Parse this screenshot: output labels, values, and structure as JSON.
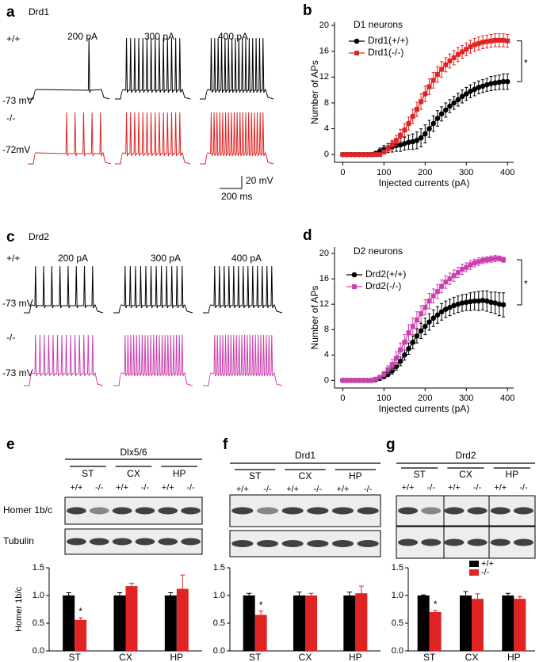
{
  "chart_data": [
    {
      "type": "line",
      "panel": "b",
      "title": "D1 neurons",
      "xlabel": "Injected currents (pA)",
      "ylabel": "Number of APs",
      "xlim": [
        -20,
        415
      ],
      "ylim": [
        -1.2,
        20.5
      ],
      "xticks": [
        0,
        100,
        200,
        300,
        400
      ],
      "yticks": [
        0,
        4,
        8,
        12,
        16,
        20
      ],
      "x": [
        0,
        10,
        20,
        30,
        40,
        50,
        60,
        70,
        80,
        90,
        100,
        110,
        120,
        130,
        140,
        150,
        160,
        170,
        180,
        190,
        200,
        210,
        220,
        230,
        240,
        250,
        260,
        270,
        280,
        290,
        300,
        310,
        320,
        330,
        340,
        350,
        360,
        370,
        380,
        390,
        400
      ],
      "series": [
        {
          "name": "Drd1(+/+)",
          "color": "#000000",
          "marker": "circle",
          "values": [
            0,
            0,
            0,
            0,
            0,
            0,
            0,
            0,
            0.2,
            0.5,
            0.8,
            1,
            1.2,
            1.4,
            1.5,
            1.7,
            1.9,
            2,
            2.2,
            2.6,
            3.2,
            4,
            4.8,
            5.6,
            6.3,
            6.9,
            7.5,
            8,
            8.5,
            9,
            9.4,
            9.8,
            10.1,
            10.4,
            10.6,
            10.8,
            11,
            11.1,
            11.2,
            11.3,
            11.3
          ],
          "errors": [
            0,
            0,
            0,
            0,
            0,
            0,
            0,
            0,
            0.3,
            0.5,
            0.6,
            0.7,
            0.8,
            0.9,
            1,
            1,
            1.1,
            1.2,
            1.3,
            1.4,
            1.4,
            1.3,
            1.2,
            1.2,
            1.1,
            1.1,
            1,
            1,
            1,
            1,
            1,
            1,
            1,
            1,
            1,
            1,
            1.1,
            1.1,
            1.1,
            1.2,
            1.2
          ]
        },
        {
          "name": "Drd1(-/-)",
          "color": "#e02424",
          "marker": "square",
          "values": [
            0,
            0,
            0,
            0,
            0,
            0,
            0,
            0,
            0,
            0,
            0.4,
            0.9,
            1.5,
            2.2,
            3,
            3.8,
            4.8,
            5.9,
            7,
            8.2,
            9.4,
            10.5,
            11.5,
            12.4,
            13.2,
            13.9,
            14.5,
            15,
            15.5,
            15.9,
            16.3,
            16.7,
            17,
            17.2,
            17.4,
            17.5,
            17.6,
            17.7,
            17.7,
            17.7,
            17.6
          ],
          "errors": [
            0,
            0,
            0,
            0,
            0,
            0,
            0,
            0,
            0,
            0,
            0.3,
            0.5,
            0.7,
            0.8,
            0.9,
            1,
            1,
            1.1,
            1.1,
            1.2,
            1.2,
            1.2,
            1.2,
            1.2,
            1.2,
            1.1,
            1.1,
            1.1,
            1.1,
            1,
            1,
            1,
            1,
            1,
            1,
            1,
            1,
            1,
            1,
            1,
            1
          ]
        }
      ],
      "annotation": "*"
    },
    {
      "type": "line",
      "panel": "d",
      "title": "D2 neurons",
      "xlabel": "Injected currents (pA)",
      "ylabel": "Number of APs",
      "xlim": [
        -20,
        415
      ],
      "ylim": [
        -1.2,
        21
      ],
      "xticks": [
        0,
        100,
        200,
        300,
        400
      ],
      "yticks": [
        0,
        4,
        8,
        12,
        16,
        20
      ],
      "x": [
        0,
        10,
        20,
        30,
        40,
        50,
        60,
        70,
        80,
        90,
        100,
        110,
        120,
        130,
        140,
        150,
        160,
        170,
        180,
        190,
        200,
        210,
        220,
        230,
        240,
        250,
        260,
        270,
        280,
        290,
        300,
        310,
        320,
        330,
        340,
        350,
        360,
        370,
        380,
        390
      ],
      "series": [
        {
          "name": "Drd2(+/+)",
          "color": "#000000",
          "marker": "circle",
          "values": [
            0,
            0,
            0,
            0,
            0,
            0,
            0,
            0,
            0.1,
            0.3,
            0.6,
            1,
            1.5,
            2.2,
            3,
            4,
            5,
            6,
            7,
            7.8,
            8.5,
            9.2,
            9.8,
            10.3,
            10.8,
            11.2,
            11.5,
            11.8,
            12,
            12.2,
            12.3,
            12.4,
            12.5,
            12.5,
            12.6,
            12.5,
            12.3,
            12.2,
            12,
            11.9
          ],
          "errors": [
            0,
            0,
            0,
            0,
            0,
            0,
            0,
            0,
            0.1,
            0.2,
            0.3,
            0.4,
            0.5,
            0.6,
            0.7,
            0.8,
            0.9,
            1,
            1.1,
            1.2,
            1.3,
            1.3,
            1.3,
            1.3,
            1.3,
            1.3,
            1.3,
            1.3,
            1.3,
            1.3,
            1.3,
            1.4,
            1.4,
            1.5,
            1.5,
            1.6,
            1.6,
            1.7,
            1.8,
            1.9
          ]
        },
        {
          "name": "Drd2(-/-)",
          "color": "#cc3fae",
          "marker": "square",
          "values": [
            0,
            0,
            0,
            0,
            0,
            0,
            0,
            0,
            0.2,
            0.5,
            1,
            1.7,
            2.5,
            3.5,
            4.8,
            6,
            7.5,
            8.5,
            9.5,
            10.5,
            11.5,
            12.5,
            13.3,
            14,
            14.8,
            15.5,
            16,
            16.5,
            17,
            17.5,
            17.8,
            18.2,
            18.5,
            18.7,
            18.9,
            19,
            19.1,
            19.2,
            19.2,
            19
          ],
          "errors": [
            0,
            0,
            0,
            0,
            0,
            0,
            0,
            0,
            0.1,
            0.2,
            0.4,
            0.6,
            0.8,
            1,
            1.1,
            1.2,
            1.3,
            1.3,
            1.3,
            1.3,
            1.2,
            1.2,
            1.1,
            1.1,
            1,
            1,
            0.9,
            0.9,
            0.8,
            0.8,
            0.7,
            0.7,
            0.6,
            0.6,
            0.5,
            0.5,
            0.5,
            0.5,
            0.4,
            0.4
          ]
        }
      ],
      "annotation": "*"
    },
    {
      "type": "bar",
      "ylabel": "Homer 1b/c",
      "categories": [
        "ST",
        "CX",
        "HP"
      ],
      "ylim": [
        0,
        1.5
      ],
      "yticks": [
        {
          "value": 0,
          "label": "0.0"
        },
        {
          "value": 0.5,
          "label": "0.5"
        },
        {
          "value": 1,
          "label": "1.0"
        },
        {
          "value": 1.5,
          "label": "1.5"
        }
      ],
      "series": [
        {
          "color": "#000000",
          "values": [
            1,
            1,
            1
          ],
          "errors": [
            0.05,
            0.05,
            0.05
          ]
        },
        {
          "color": "#e02424",
          "values": [
            0.56,
            1.17,
            1.12
          ],
          "errors": [
            0.04,
            0.05,
            0.25
          ]
        }
      ],
      "annotation": "*"
    },
    {
      "type": "bar",
      "categories": [
        "ST",
        "CX",
        "HP"
      ],
      "ylim": [
        0,
        1.5
      ],
      "yticks": [
        {
          "value": 0,
          "label": "0.0"
        },
        {
          "value": 0.5,
          "label": "0.5"
        },
        {
          "value": 1,
          "label": "1.0"
        },
        {
          "value": 1.5,
          "label": "1.5"
        }
      ],
      "series": [
        {
          "color": "#000000",
          "values": [
            1,
            1,
            1
          ],
          "errors": [
            0.04,
            0.06,
            0.06
          ]
        },
        {
          "color": "#e02424",
          "values": [
            0.65,
            1,
            1.04
          ],
          "errors": [
            0.07,
            0.04,
            0.13
          ]
        }
      ],
      "annotation": "*"
    },
    {
      "type": "bar",
      "categories": [
        "ST",
        "CX",
        "HP"
      ],
      "ylim": [
        0,
        1.5
      ],
      "yticks": [
        {
          "value": 0,
          "label": "0.0"
        },
        {
          "value": 0.5,
          "label": "0.5"
        },
        {
          "value": 1,
          "label": "1.0"
        },
        {
          "value": 1.5,
          "label": "1.5"
        }
      ],
      "series": [
        {
          "name": "+/+",
          "color": "#000000",
          "values": [
            1,
            1,
            1
          ],
          "errors": [
            0.01,
            0.07,
            0.04
          ]
        },
        {
          "name": "-/-",
          "color": "#e02424",
          "values": [
            0.7,
            0.94,
            0.94
          ],
          "errors": [
            0.03,
            0.09,
            0.04
          ]
        }
      ],
      "annotation": "*",
      "legend": true
    }
  ],
  "traces": [
    {
      "panel": "a",
      "title": "Drd1",
      "currents": [
        "200 pA",
        "300 pA",
        "400 pA"
      ],
      "rows": [
        {
          "genotype": "+/+",
          "potential": "-73 mV"
        },
        {
          "genotype": "-/-",
          "potential": "-72mV"
        }
      ],
      "scale_bar": {
        "voltage": "20 mV",
        "time": "200 ms"
      }
    },
    {
      "panel": "c",
      "title": "Drd2",
      "currents": [
        "200 pA",
        "300 pA",
        "400 pA"
      ],
      "rows": [
        {
          "genotype": "+/+",
          "potential": "-73 mV"
        },
        {
          "genotype": "-/-",
          "potential": "-73 mV"
        }
      ]
    }
  ],
  "blots": [
    {
      "panel": "e",
      "title": "Dlx5/6",
      "regions": [
        "ST",
        "CX",
        "HP"
      ],
      "genotypes": [
        "+/+",
        "-/-",
        "+/+",
        "-/-",
        "+/+",
        "-/-"
      ],
      "rows": [
        "Homer 1b/c",
        "Tubulin"
      ]
    },
    {
      "panel": "f",
      "title": "Drd1",
      "regions": [
        "ST",
        "CX",
        "HP"
      ],
      "genotypes": [
        "+/+",
        "-/-",
        "+/+",
        "-/-",
        "+/+",
        "-/-"
      ]
    },
    {
      "panel": "g",
      "title": "Drd2",
      "regions": [
        "ST",
        "CX",
        "HP"
      ],
      "genotypes": [
        "+/+",
        "-/-",
        "+/+",
        "-/-",
        "+/+",
        "-/-"
      ]
    }
  ]
}
